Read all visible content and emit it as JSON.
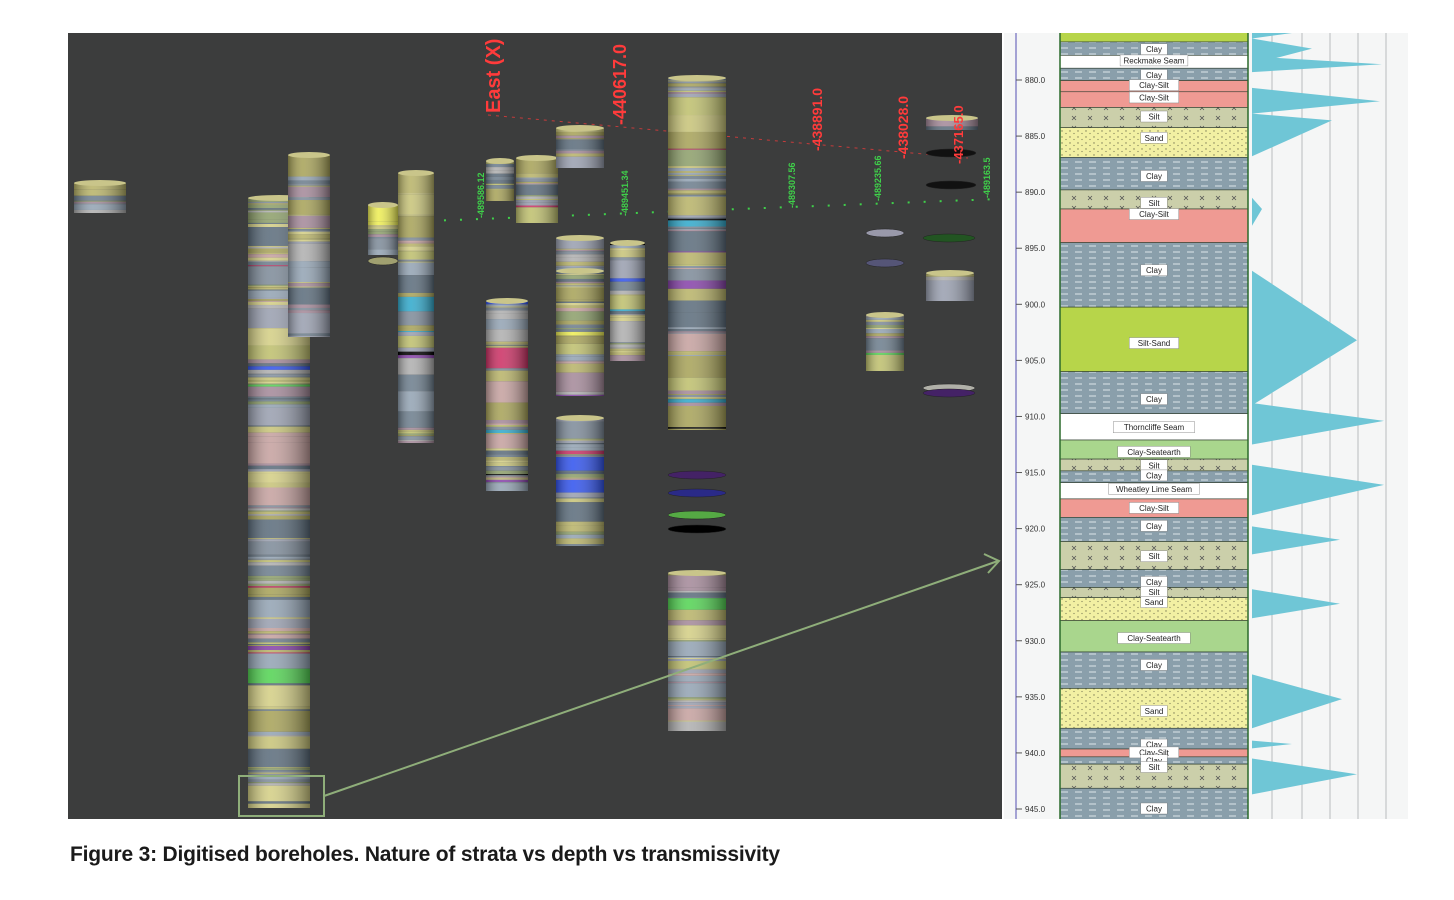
{
  "caption": "Figure 3: Digitised boreholes. Nature of strata vs depth vs transmissivity",
  "scene": {
    "axis_title": "East (X)",
    "red_labels": [
      "-440617.0",
      "-438891.0",
      "-438028.0",
      "-437165.0"
    ],
    "green_labels": [
      "-489586.12",
      "-489451.34",
      "-489307.56",
      "-489235.66",
      "-489163.5"
    ],
    "colors": {
      "background": "#3c3d3d",
      "axis_red": "#ff3b3b",
      "grid_green": "#3fd04a",
      "highlight_box": "#8fae7a"
    }
  },
  "log": {
    "depth_ticks": [
      "880.0",
      "885.0",
      "890.0",
      "895.0",
      "900.0",
      "905.0",
      "910.0",
      "915.0",
      "920.0",
      "925.0",
      "930.0",
      "935.0",
      "940.0",
      "945.0"
    ],
    "strata_labels": [
      {
        "label": "Clay",
        "depth": 877.3
      },
      {
        "label": "Reckmake Seam",
        "depth": 878.3
      },
      {
        "label": "Clay",
        "depth": 879.6
      },
      {
        "label": "Clay-Silt",
        "depth": 880.5
      },
      {
        "label": "Clay-Silt",
        "depth": 881.6
      },
      {
        "label": "Silt",
        "depth": 883.3
      },
      {
        "label": "Sand",
        "depth": 885.2
      },
      {
        "label": "Clay",
        "depth": 888.6
      },
      {
        "label": "Silt",
        "depth": 891.0
      },
      {
        "label": "Clay-Silt",
        "depth": 892.0
      },
      {
        "label": "Clay",
        "depth": 897.0
      },
      {
        "label": "Silt-Sand",
        "depth": 903.5
      },
      {
        "label": "Clay",
        "depth": 908.5
      },
      {
        "label": "Thorncliffe Seam",
        "depth": 911.0
      },
      {
        "label": "Clay-Seatearth",
        "depth": 913.2
      },
      {
        "label": "Silt",
        "depth": 914.4
      },
      {
        "label": "Clay",
        "depth": 915.3
      },
      {
        "label": "Wheatley Lime Seam",
        "depth": 916.5
      },
      {
        "label": "Clay-Silt",
        "depth": 918.2
      },
      {
        "label": "Clay",
        "depth": 919.8
      },
      {
        "label": "Silt",
        "depth": 922.5
      },
      {
        "label": "Clay",
        "depth": 924.8
      },
      {
        "label": "Silt",
        "depth": 925.7
      },
      {
        "label": "Sand",
        "depth": 926.6
      },
      {
        "label": "Clay-Seatearth",
        "depth": 929.8
      },
      {
        "label": "Clay",
        "depth": 932.2
      },
      {
        "label": "Sand",
        "depth": 936.3
      },
      {
        "label": "Clay",
        "depth": 939.3
      },
      {
        "label": "Clay-Silt",
        "depth": 940.0
      },
      {
        "label": "Clay",
        "depth": 940.7
      },
      {
        "label": "Silt",
        "depth": 941.3
      },
      {
        "label": "Clay",
        "depth": 945.0
      }
    ],
    "colors": {
      "clay": "#8a9fab",
      "clay_silt": "#ef9a93",
      "silt": "#cbcfaa",
      "sand": "#f2f0a3",
      "silt_sand": "#b7d54a",
      "seatearth": "#a9d68d",
      "seam": "#ffffff",
      "transmissivity": "#6fc6d6"
    }
  }
}
